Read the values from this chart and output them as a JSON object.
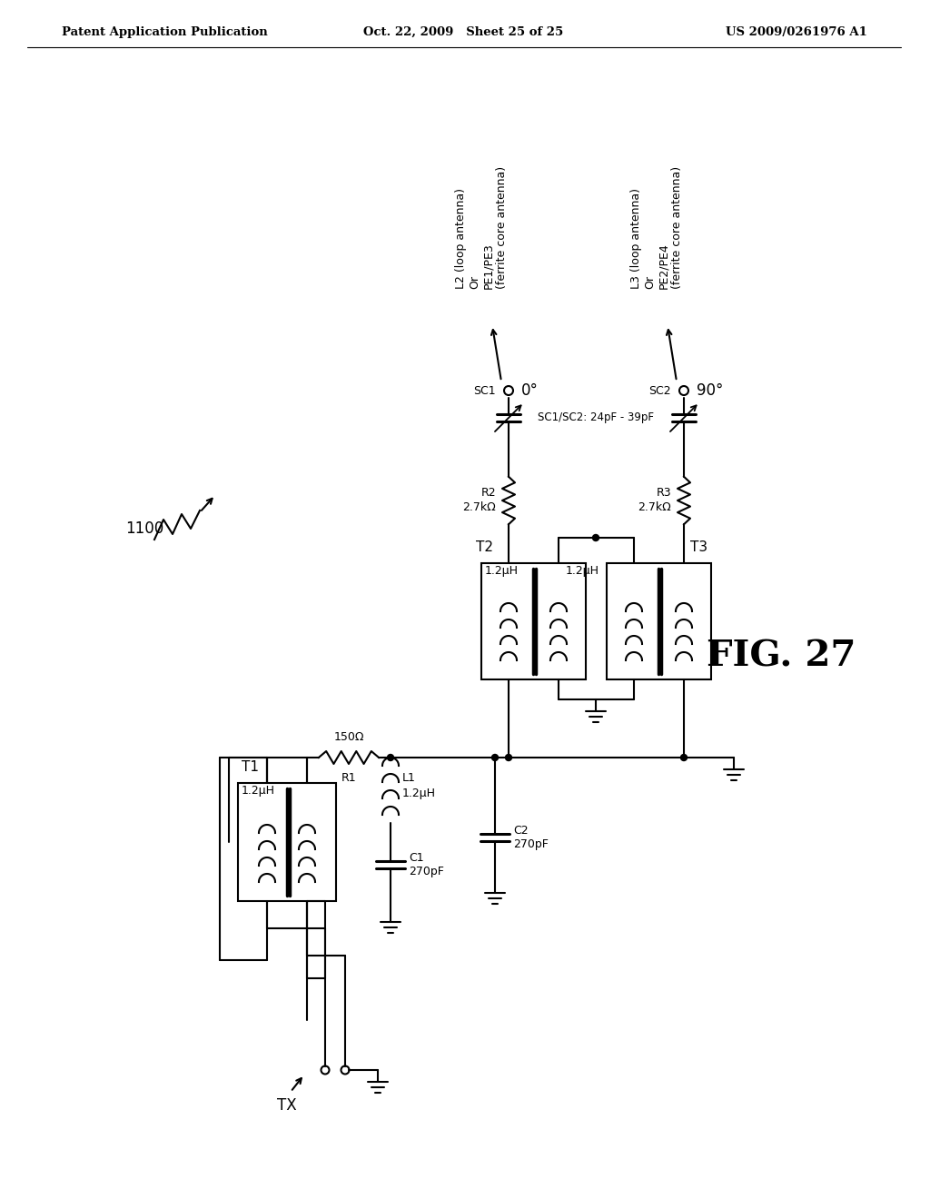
{
  "header_left": "Patent Application Publication",
  "header_mid": "Oct. 22, 2009   Sheet 25 of 25",
  "header_right": "US 2009/0261976 A1",
  "fig_label": "FIG. 27",
  "circuit_label": "1100",
  "bg": "#ffffff"
}
